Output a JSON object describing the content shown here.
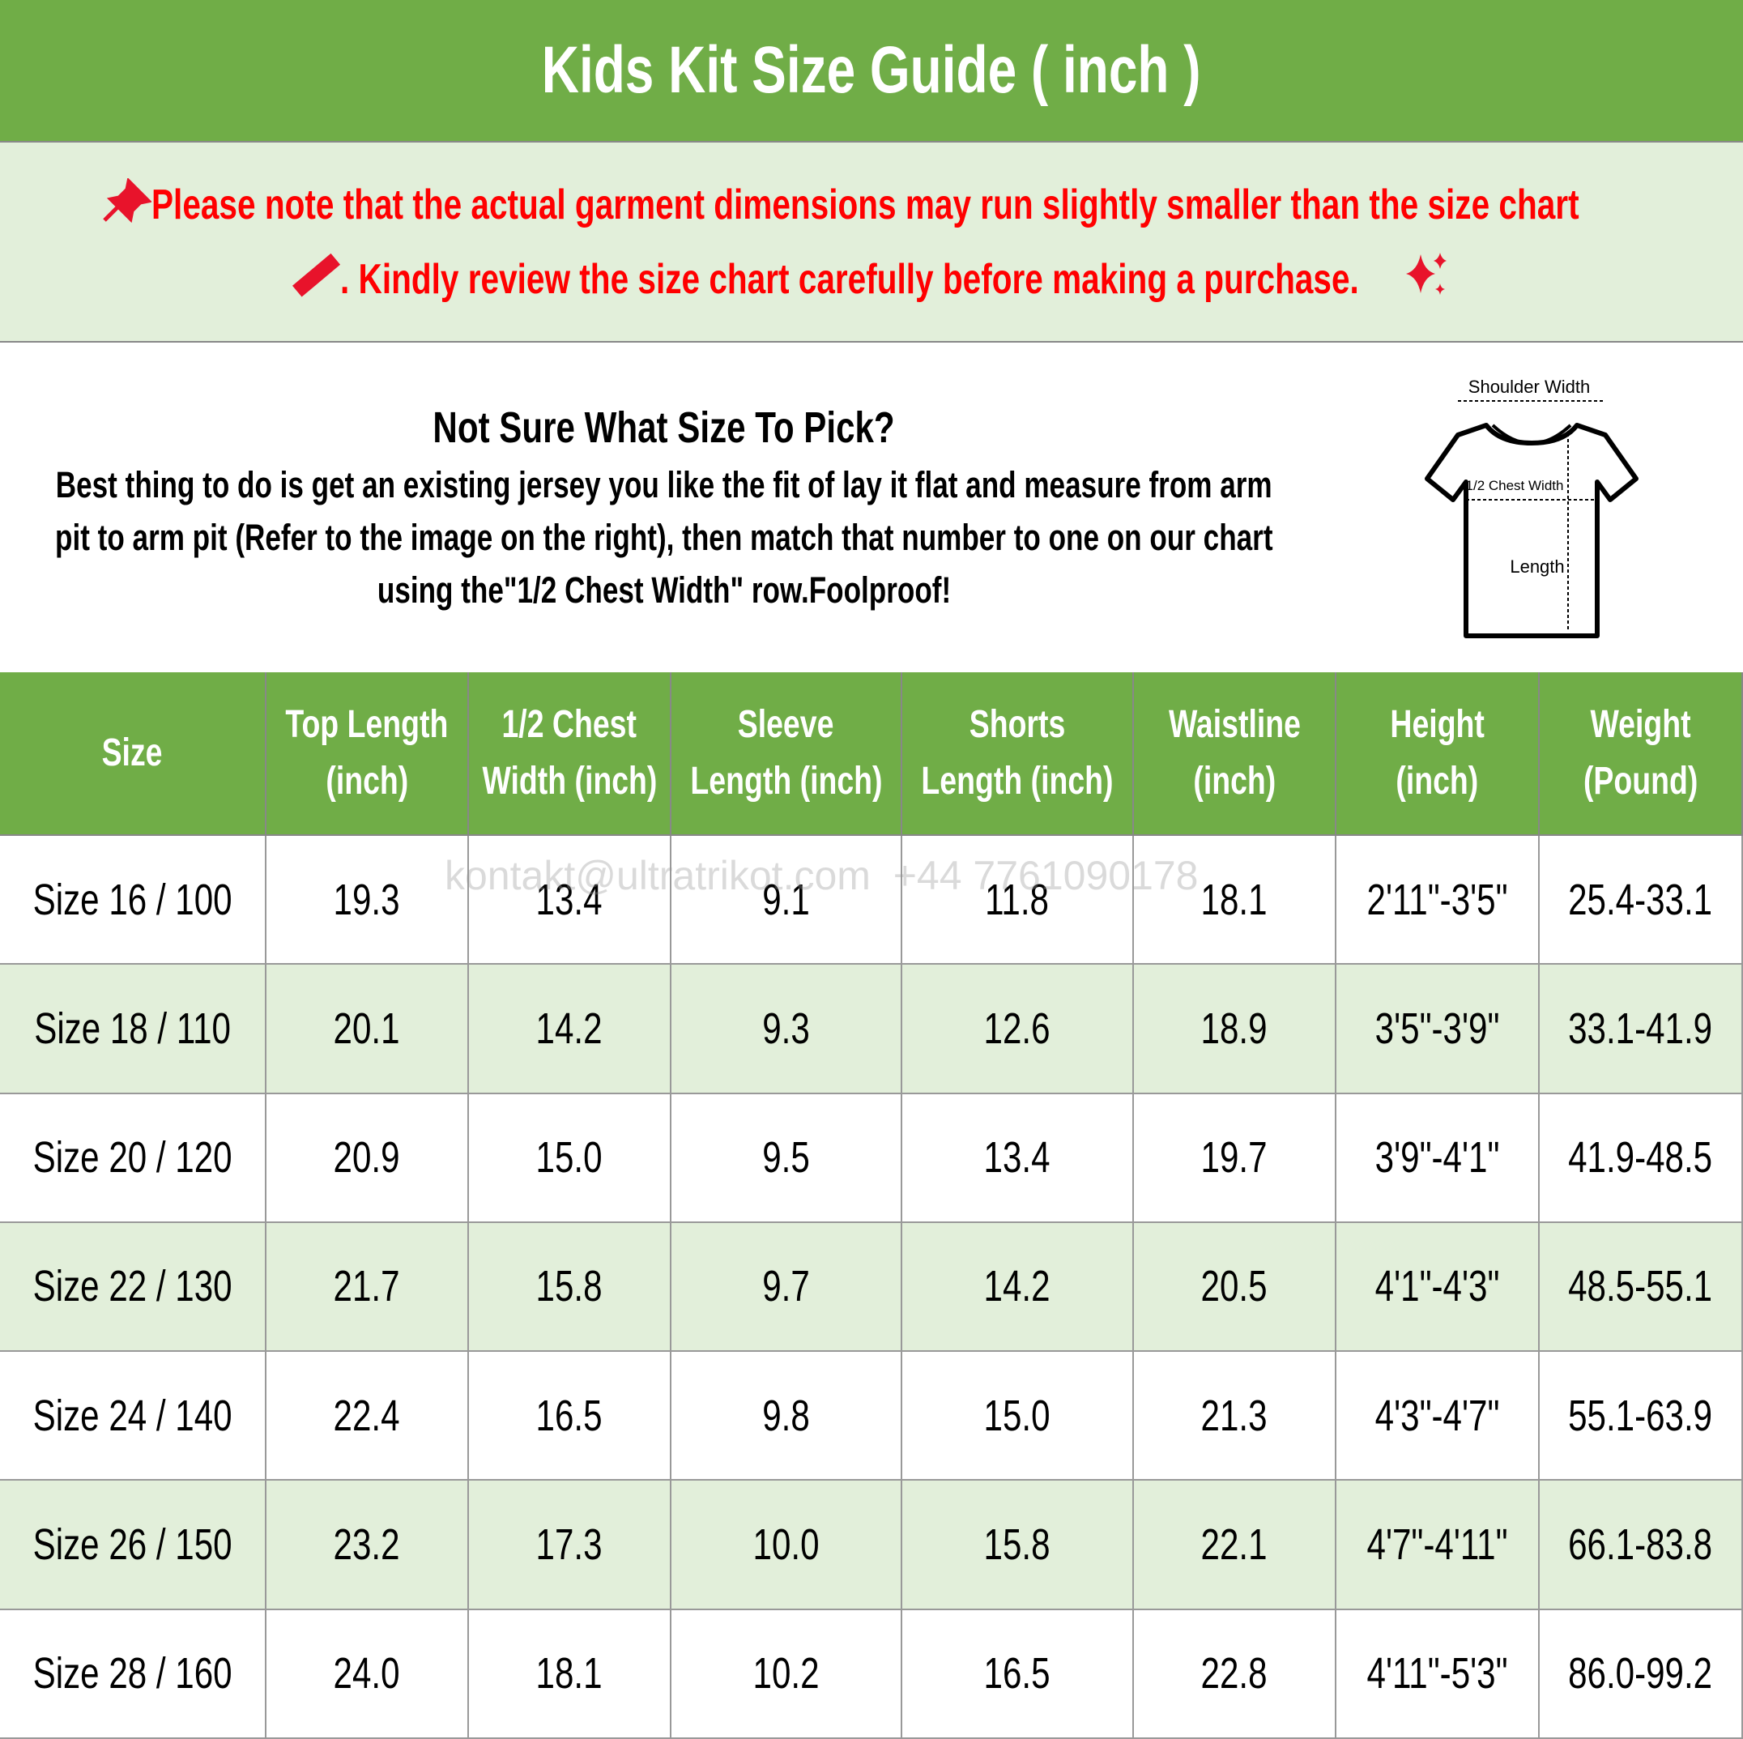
{
  "header": {
    "title": "Kids Kit Size Guide ( inch )"
  },
  "notice": {
    "line1": "Please note that the actual garment dimensions may run slightly smaller than the size chart",
    "line2": ". Kindly review the size chart carefully before making a purchase."
  },
  "info": {
    "heading": "Not Sure What Size To Pick?",
    "body": [
      "Best thing to do is get an existing jersey you like the fit of lay it flat and measure from arm",
      "pit to arm pit (Refer to the image on the right), then match that number to one on our chart",
      "using the\"1/2 Chest Width\" row.Foolproof!"
    ]
  },
  "diagram": {
    "shoulder": "Shoulder Width",
    "chest": "1/2 Chest Width",
    "length": "Length"
  },
  "watermark": "kontakt@ultratrikot.com  +44 7761090178",
  "table": {
    "headers": [
      [
        "Size"
      ],
      [
        "Top Length",
        "(inch)"
      ],
      [
        "1/2 Chest",
        "Width (inch)"
      ],
      [
        "Sleeve",
        "Length (inch)"
      ],
      [
        "Shorts",
        "Length (inch)"
      ],
      [
        "Waistline",
        "(inch)"
      ],
      [
        "Height",
        "(inch)"
      ],
      [
        "Weight",
        "(Pound)"
      ]
    ],
    "rows": [
      [
        "Size 16 / 100",
        "19.3",
        "13.4",
        "9.1",
        "11.8",
        "18.1",
        "2'11\"-3'5\"",
        "25.4-33.1"
      ],
      [
        "Size 18 / 110",
        "20.1",
        "14.2",
        "9.3",
        "12.6",
        "18.9",
        "3'5\"-3'9\"",
        "33.1-41.9"
      ],
      [
        "Size 20 / 120",
        "20.9",
        "15.0",
        "9.5",
        "13.4",
        "19.7",
        "3'9\"-4'1\"",
        "41.9-48.5"
      ],
      [
        "Size 22 / 130",
        "21.7",
        "15.8",
        "9.7",
        "14.2",
        "20.5",
        "4'1\"-4'3\"",
        "48.5-55.1"
      ],
      [
        "Size 24 / 140",
        "22.4",
        "16.5",
        "9.8",
        "15.0",
        "21.3",
        "4'3\"-4'7\"",
        "55.1-63.9"
      ],
      [
        "Size 26 / 150",
        "23.2",
        "17.3",
        "10.0",
        "15.8",
        "22.1",
        "4'7\"-4'11\"",
        "66.1-83.8"
      ],
      [
        "Size 28 / 160",
        "24.0",
        "18.1",
        "10.2",
        "16.5",
        "22.8",
        "4'11\"-5'3\"",
        "86.0-99.2"
      ]
    ]
  }
}
